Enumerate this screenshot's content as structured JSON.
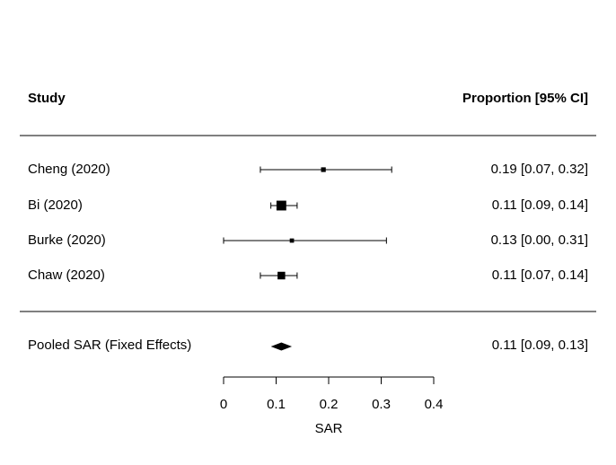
{
  "chart_data": {
    "type": "forest",
    "header": {
      "left": "Study",
      "right": "Proportion [95% CI]"
    },
    "studies": [
      {
        "label": "Cheng (2020)",
        "estimate": 0.19,
        "lower": 0.07,
        "upper": 0.32,
        "ci_text": "0.19 [0.07, 0.32]",
        "weight": 0.05
      },
      {
        "label": "Bi (2020)",
        "estimate": 0.11,
        "lower": 0.09,
        "upper": 0.14,
        "ci_text": "0.11 [0.09, 0.14]",
        "weight": 0.62
      },
      {
        "label": "Burke (2020)",
        "estimate": 0.13,
        "lower": 0.0,
        "upper": 0.31,
        "ci_text": "0.13 [0.00, 0.31]",
        "weight": 0.03
      },
      {
        "label": "Chaw (2020)",
        "estimate": 0.11,
        "lower": 0.07,
        "upper": 0.14,
        "ci_text": "0.11 [0.07, 0.14]",
        "weight": 0.3
      }
    ],
    "pooled": {
      "label": "Pooled SAR (Fixed Effects)",
      "estimate": 0.11,
      "lower": 0.09,
      "upper": 0.13,
      "ci_text": "0.11 [0.09, 0.13]"
    },
    "xlabel": "SAR",
    "xlim": [
      0,
      0.4
    ],
    "xticks": [
      0,
      0.1,
      0.2,
      0.3,
      0.4
    ],
    "xtick_labels": [
      "0",
      "0.1",
      "0.2",
      "0.3",
      "0.4"
    ],
    "color": "#000000"
  }
}
